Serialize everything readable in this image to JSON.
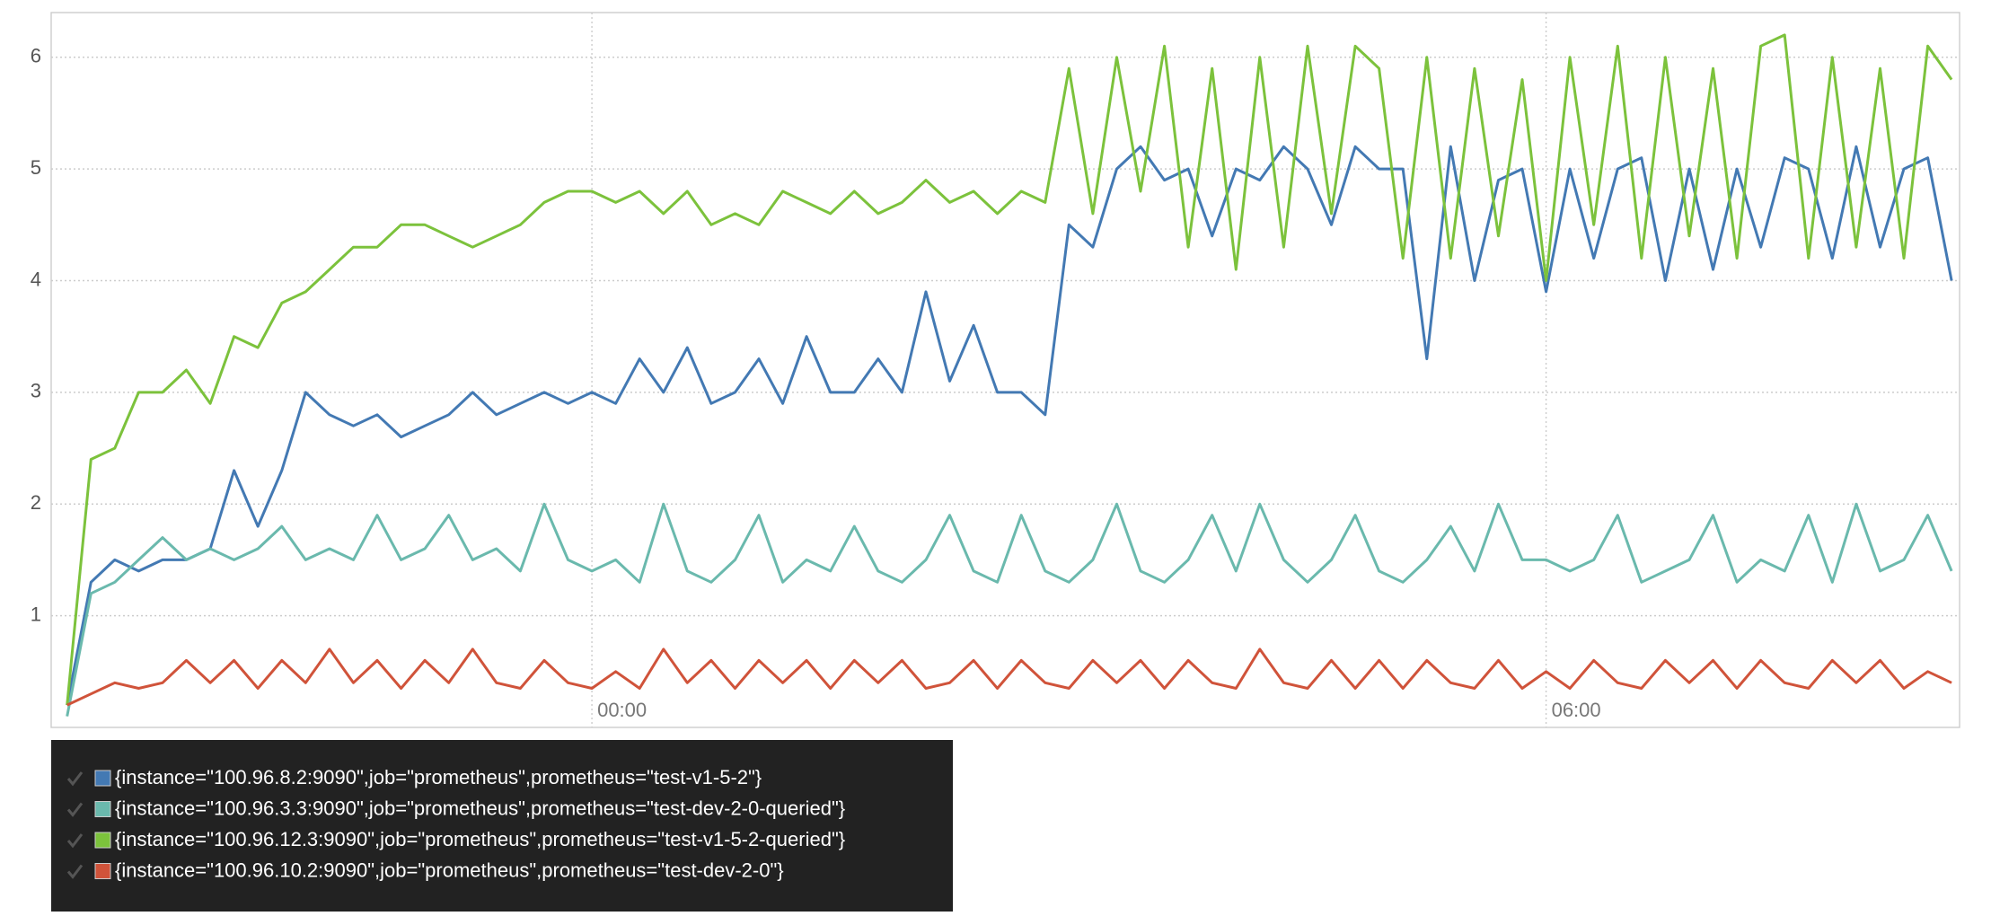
{
  "chart_data": {
    "type": "line",
    "x": [
      -3.3,
      -3.15,
      -3,
      -2.85,
      -2.7,
      -2.55,
      -2.4,
      -2.25,
      -2.1,
      -1.95,
      -1.8,
      -1.65,
      -1.5,
      -1.35,
      -1.2,
      -1.05,
      -0.9,
      -0.75,
      -0.6,
      -0.45,
      -0.3,
      -0.15,
      0,
      0.15,
      0.3,
      0.45,
      0.6,
      0.75,
      0.9,
      1.05,
      1.2,
      1.35,
      1.5,
      1.65,
      1.8,
      1.95,
      2.1,
      2.25,
      2.4,
      2.55,
      2.7,
      2.85,
      3,
      3.15,
      3.3,
      3.45,
      3.6,
      3.75,
      3.9,
      4.05,
      4.2,
      4.35,
      4.5,
      4.65,
      4.8,
      4.95,
      5.1,
      5.25,
      5.4,
      5.55,
      5.7,
      5.85,
      6,
      6.15,
      6.3,
      6.45,
      6.6,
      6.75,
      6.9,
      7.05,
      7.2,
      7.35,
      7.5,
      7.65,
      7.8,
      7.95,
      8.1,
      8.25,
      8.4,
      8.55
    ],
    "series": [
      {
        "name": "{instance=\"100.96.8.2:9090\",job=\"prometheus\",prometheus=\"test-v1-5-2\"}",
        "color": "#4379b3",
        "values": [
          0.2,
          1.3,
          1.5,
          1.4,
          1.5,
          1.5,
          1.6,
          2.3,
          1.8,
          2.3,
          3.0,
          2.8,
          2.7,
          2.8,
          2.6,
          2.7,
          2.8,
          3.0,
          2.8,
          2.9,
          3.0,
          2.9,
          3.0,
          2.9,
          3.3,
          3.0,
          3.4,
          2.9,
          3.0,
          3.3,
          2.9,
          3.5,
          3.0,
          3.0,
          3.3,
          3.0,
          3.9,
          3.1,
          3.6,
          3.0,
          3.0,
          2.8,
          4.5,
          4.3,
          5.0,
          5.2,
          4.9,
          5.0,
          4.4,
          5.0,
          4.9,
          5.2,
          5.0,
          4.5,
          5.2,
          5.0,
          5.0,
          3.3,
          5.2,
          4.0,
          4.9,
          5.0,
          3.9,
          5.0,
          4.2,
          5.0,
          5.1,
          4.0,
          5.0,
          4.1,
          5.0,
          4.3,
          5.1,
          5.0,
          4.2,
          5.2,
          4.3,
          5.0,
          5.1,
          4.0
        ]
      },
      {
        "name": "{instance=\"100.96.3.3:9090\",job=\"prometheus\",prometheus=\"test-dev-2-0-queried\"}",
        "color": "#6ab9ad",
        "values": [
          0.1,
          1.2,
          1.3,
          1.5,
          1.7,
          1.5,
          1.6,
          1.5,
          1.6,
          1.8,
          1.5,
          1.6,
          1.5,
          1.9,
          1.5,
          1.6,
          1.9,
          1.5,
          1.6,
          1.4,
          2.0,
          1.5,
          1.4,
          1.5,
          1.3,
          2.0,
          1.4,
          1.3,
          1.5,
          1.9,
          1.3,
          1.5,
          1.4,
          1.8,
          1.4,
          1.3,
          1.5,
          1.9,
          1.4,
          1.3,
          1.9,
          1.4,
          1.3,
          1.5,
          2.0,
          1.4,
          1.3,
          1.5,
          1.9,
          1.4,
          2.0,
          1.5,
          1.3,
          1.5,
          1.9,
          1.4,
          1.3,
          1.5,
          1.8,
          1.4,
          2.0,
          1.5,
          1.5,
          1.4,
          1.5,
          1.9,
          1.3,
          1.4,
          1.5,
          1.9,
          1.3,
          1.5,
          1.4,
          1.9,
          1.3,
          2.0,
          1.4,
          1.5,
          1.9,
          1.4
        ]
      },
      {
        "name": "{instance=\"100.96.12.3:9090\",job=\"prometheus\",prometheus=\"test-v1-5-2-queried\"}",
        "color": "#7cc23c",
        "values": [
          0.2,
          2.4,
          2.5,
          3.0,
          3.0,
          3.2,
          2.9,
          3.5,
          3.4,
          3.8,
          3.9,
          4.1,
          4.3,
          4.3,
          4.5,
          4.5,
          4.4,
          4.3,
          4.4,
          4.5,
          4.7,
          4.8,
          4.8,
          4.7,
          4.8,
          4.6,
          4.8,
          4.5,
          4.6,
          4.5,
          4.8,
          4.7,
          4.6,
          4.8,
          4.6,
          4.7,
          4.9,
          4.7,
          4.8,
          4.6,
          4.8,
          4.7,
          5.9,
          4.6,
          6.0,
          4.8,
          6.1,
          4.3,
          5.9,
          4.1,
          6.0,
          4.3,
          6.1,
          4.6,
          6.1,
          5.9,
          4.2,
          6.0,
          4.2,
          5.9,
          4.4,
          5.8,
          4.0,
          6.0,
          4.5,
          6.1,
          4.2,
          6.0,
          4.4,
          5.9,
          4.2,
          6.1,
          6.2,
          4.2,
          6.0,
          4.3,
          5.9,
          4.2,
          6.1,
          5.8
        ]
      },
      {
        "name": "{instance=\"100.96.10.2:9090\",job=\"prometheus\",prometheus=\"test-dev-2-0\"}",
        "color": "#d0533a",
        "values": [
          0.2,
          0.3,
          0.4,
          0.35,
          0.4,
          0.6,
          0.4,
          0.6,
          0.35,
          0.6,
          0.4,
          0.7,
          0.4,
          0.6,
          0.35,
          0.6,
          0.4,
          0.7,
          0.4,
          0.35,
          0.6,
          0.4,
          0.35,
          0.5,
          0.35,
          0.7,
          0.4,
          0.6,
          0.35,
          0.6,
          0.4,
          0.6,
          0.35,
          0.6,
          0.4,
          0.6,
          0.35,
          0.4,
          0.6,
          0.35,
          0.6,
          0.4,
          0.35,
          0.6,
          0.4,
          0.6,
          0.35,
          0.6,
          0.4,
          0.35,
          0.7,
          0.4,
          0.35,
          0.6,
          0.35,
          0.6,
          0.35,
          0.6,
          0.4,
          0.35,
          0.6,
          0.35,
          0.5,
          0.35,
          0.6,
          0.4,
          0.35,
          0.6,
          0.4,
          0.6,
          0.35,
          0.6,
          0.4,
          0.35,
          0.6,
          0.4,
          0.6,
          0.35,
          0.5,
          0.4
        ]
      }
    ],
    "xlim": [
      -3.4,
      8.6
    ],
    "xticks": [
      {
        "value": 0,
        "label": "00:00"
      },
      {
        "value": 6,
        "label": "06:00"
      }
    ],
    "ylim": [
      0,
      6.4
    ],
    "yticks": [
      1,
      2,
      3,
      4,
      5,
      6
    ],
    "grid": true
  }
}
